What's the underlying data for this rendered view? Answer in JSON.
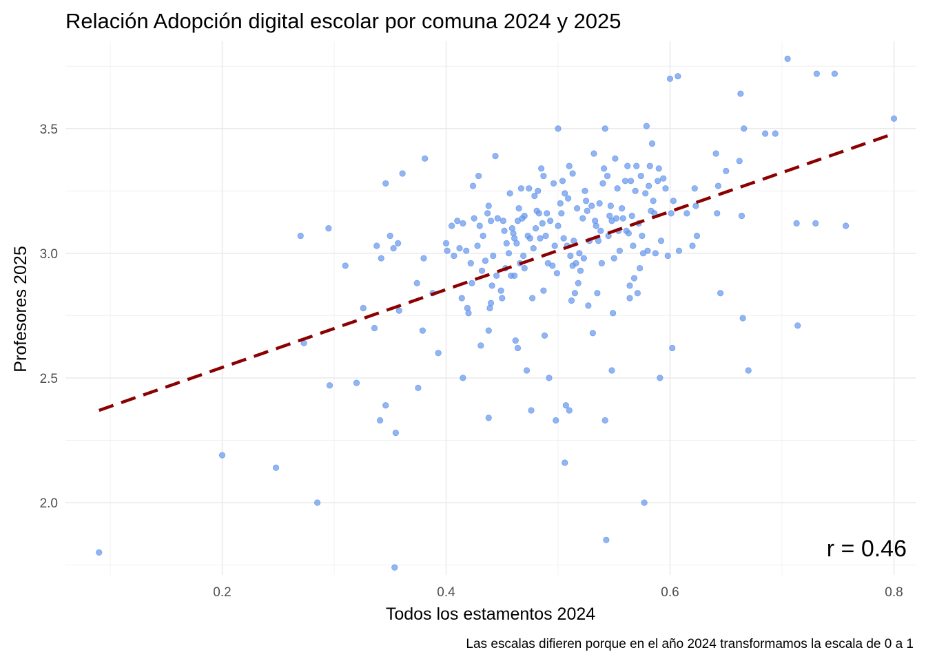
{
  "chart_data": {
    "type": "scatter",
    "title": "Relación Adopción digital escolar por comuna 2024 y 2025",
    "xlabel": "Todos los estamentos 2024",
    "ylabel": "Profesores 2025",
    "caption": "Las escalas difieren porque en el año 2024 transformamos la escala de 0 a 1",
    "annotation": "r = 0.46",
    "xlim": [
      0.06,
      0.82
    ],
    "ylim": [
      1.71,
      3.85
    ],
    "xticks": [
      "0.2",
      "0.4",
      "0.6",
      "0.8"
    ],
    "yticks": [
      "2.0",
      "2.5",
      "3.0",
      "3.5"
    ],
    "grid": true,
    "point_color": "#6495ED",
    "trend_color": "#8B0000",
    "trend_line": {
      "x": [
        0.09,
        0.8
      ],
      "y": [
        2.37,
        3.48
      ]
    },
    "points": [
      [
        0.09,
        1.8
      ],
      [
        0.2,
        2.19
      ],
      [
        0.248,
        2.14
      ],
      [
        0.285,
        2.0
      ],
      [
        0.27,
        3.07
      ],
      [
        0.295,
        3.1
      ],
      [
        0.273,
        2.64
      ],
      [
        0.296,
        2.47
      ],
      [
        0.31,
        2.95
      ],
      [
        0.32,
        2.48
      ],
      [
        0.326,
        2.78
      ],
      [
        0.336,
        2.7
      ],
      [
        0.338,
        3.03
      ],
      [
        0.341,
        2.33
      ],
      [
        0.342,
        2.98
      ],
      [
        0.346,
        2.39
      ],
      [
        0.346,
        3.28
      ],
      [
        0.35,
        3.07
      ],
      [
        0.353,
        3.02
      ],
      [
        0.354,
        1.74
      ],
      [
        0.355,
        2.28
      ],
      [
        0.357,
        3.04
      ],
      [
        0.358,
        2.77
      ],
      [
        0.361,
        3.32
      ],
      [
        0.374,
        2.88
      ],
      [
        0.375,
        2.46
      ],
      [
        0.379,
        2.69
      ],
      [
        0.381,
        3.38
      ],
      [
        0.38,
        2.98
      ],
      [
        0.388,
        2.84
      ],
      [
        0.393,
        2.6
      ],
      [
        0.4,
        3.04
      ],
      [
        0.401,
        3.01
      ],
      [
        0.405,
        3.11
      ],
      [
        0.407,
        2.99
      ],
      [
        0.41,
        3.13
      ],
      [
        0.412,
        3.02
      ],
      [
        0.414,
        2.82
      ],
      [
        0.415,
        3.12
      ],
      [
        0.415,
        2.5
      ],
      [
        0.418,
        3.01
      ],
      [
        0.419,
        2.78
      ],
      [
        0.42,
        2.76
      ],
      [
        0.422,
        2.96
      ],
      [
        0.423,
        2.88
      ],
      [
        0.424,
        3.27
      ],
      [
        0.425,
        3.14
      ],
      [
        0.428,
        3.03
      ],
      [
        0.429,
        3.31
      ],
      [
        0.43,
        3.11
      ],
      [
        0.431,
        2.63
      ],
      [
        0.432,
        2.93
      ],
      [
        0.433,
        3.07
      ],
      [
        0.435,
        2.97
      ],
      [
        0.437,
        3.16
      ],
      [
        0.438,
        2.34
      ],
      [
        0.438,
        2.69
      ],
      [
        0.438,
        3.19
      ],
      [
        0.439,
        2.78
      ],
      [
        0.44,
        3.13
      ],
      [
        0.44,
        2.8
      ],
      [
        0.441,
        2.87
      ],
      [
        0.442,
        2.99
      ],
      [
        0.444,
        3.39
      ],
      [
        0.445,
        2.91
      ],
      [
        0.446,
        3.14
      ],
      [
        0.449,
        2.85
      ],
      [
        0.45,
        2.82
      ],
      [
        0.451,
        3.13
      ],
      [
        0.452,
        3.09
      ],
      [
        0.453,
        2.94
      ],
      [
        0.454,
        3.04
      ],
      [
        0.456,
        3.0
      ],
      [
        0.457,
        3.24
      ],
      [
        0.458,
        2.91
      ],
      [
        0.459,
        3.1
      ],
      [
        0.46,
        3.08
      ],
      [
        0.461,
        2.91
      ],
      [
        0.461,
        3.06
      ],
      [
        0.462,
        2.65
      ],
      [
        0.463,
        3.04
      ],
      [
        0.464,
        2.62
      ],
      [
        0.464,
        3.13
      ],
      [
        0.465,
        3.18
      ],
      [
        0.466,
        2.96
      ],
      [
        0.467,
        3.26
      ],
      [
        0.468,
        3.14
      ],
      [
        0.469,
        2.99
      ],
      [
        0.47,
        3.15
      ],
      [
        0.47,
        2.94
      ],
      [
        0.472,
        2.53
      ],
      [
        0.473,
        3.07
      ],
      [
        0.474,
        3.26
      ],
      [
        0.475,
        3.06
      ],
      [
        0.476,
        2.37
      ],
      [
        0.477,
        2.82
      ],
      [
        0.478,
        3.02
      ],
      [
        0.479,
        3.23
      ],
      [
        0.48,
        3.1
      ],
      [
        0.481,
        3.17
      ],
      [
        0.482,
        3.25
      ],
      [
        0.483,
        3.16
      ],
      [
        0.484,
        3.06
      ],
      [
        0.485,
        3.34
      ],
      [
        0.486,
        3.12
      ],
      [
        0.487,
        2.85
      ],
      [
        0.487,
        3.31
      ],
      [
        0.488,
        2.67
      ],
      [
        0.489,
        3.07
      ],
      [
        0.49,
        3.16
      ],
      [
        0.491,
        2.96
      ],
      [
        0.492,
        2.5
      ],
      [
        0.493,
        3.13
      ],
      [
        0.495,
        2.95
      ],
      [
        0.496,
        3.28
      ],
      [
        0.497,
        3.03
      ],
      [
        0.498,
        2.33
      ],
      [
        0.499,
        2.92
      ],
      [
        0.5,
        3.5
      ],
      [
        0.5,
        3.11
      ],
      [
        0.502,
        3.2
      ],
      [
        0.503,
        3.16
      ],
      [
        0.504,
        3.29
      ],
      [
        0.505,
        3.06
      ],
      [
        0.506,
        3.24
      ],
      [
        0.506,
        2.16
      ],
      [
        0.507,
        2.39
      ],
      [
        0.508,
        3.03
      ],
      [
        0.509,
        3.22
      ],
      [
        0.51,
        2.37
      ],
      [
        0.51,
        3.35
      ],
      [
        0.511,
        2.99
      ],
      [
        0.512,
        2.81
      ],
      [
        0.513,
        3.32
      ],
      [
        0.513,
        2.95
      ],
      [
        0.514,
        3.05
      ],
      [
        0.515,
        2.84
      ],
      [
        0.516,
        2.96
      ],
      [
        0.517,
        3.18
      ],
      [
        0.518,
        2.88
      ],
      [
        0.519,
        3.0
      ],
      [
        0.52,
        2.93
      ],
      [
        0.522,
        3.14
      ],
      [
        0.523,
        2.98
      ],
      [
        0.524,
        3.25
      ],
      [
        0.525,
        3.21
      ],
      [
        0.526,
        3.17
      ],
      [
        0.527,
        2.79
      ],
      [
        0.528,
        3.05
      ],
      [
        0.53,
        3.19
      ],
      [
        0.531,
        2.68
      ],
      [
        0.532,
        3.4
      ],
      [
        0.533,
        3.13
      ],
      [
        0.534,
        3.11
      ],
      [
        0.535,
        2.84
      ],
      [
        0.536,
        3.05
      ],
      [
        0.537,
        3.2
      ],
      [
        0.538,
        3.09
      ],
      [
        0.539,
        2.96
      ],
      [
        0.54,
        3.28
      ],
      [
        0.541,
        3.34
      ],
      [
        0.542,
        3.5
      ],
      [
        0.542,
        2.33
      ],
      [
        0.543,
        1.85
      ],
      [
        0.544,
        3.31
      ],
      [
        0.545,
        3.07
      ],
      [
        0.546,
        3.15
      ],
      [
        0.547,
        3.19
      ],
      [
        0.548,
        2.53
      ],
      [
        0.548,
        3.13
      ],
      [
        0.549,
        2.76
      ],
      [
        0.55,
        2.98
      ],
      [
        0.551,
        3.38
      ],
      [
        0.552,
        3.14
      ],
      [
        0.553,
        3.26
      ],
      [
        0.554,
        3.09
      ],
      [
        0.555,
        3.01
      ],
      [
        0.557,
        3.18
      ],
      [
        0.558,
        3.14
      ],
      [
        0.56,
        3.29
      ],
      [
        0.561,
        3.09
      ],
      [
        0.562,
        3.35
      ],
      [
        0.563,
        3.08
      ],
      [
        0.564,
        2.87
      ],
      [
        0.564,
        2.82
      ],
      [
        0.565,
        3.29
      ],
      [
        0.566,
        3.15
      ],
      [
        0.567,
        3.03
      ],
      [
        0.568,
        2.9
      ],
      [
        0.569,
        3.25
      ],
      [
        0.57,
        3.35
      ],
      [
        0.571,
        2.84
      ],
      [
        0.572,
        3.12
      ],
      [
        0.573,
        2.94
      ],
      [
        0.574,
        3.31
      ],
      [
        0.575,
        3.07
      ],
      [
        0.576,
        3.0
      ],
      [
        0.577,
        2.0
      ],
      [
        0.578,
        3.24
      ],
      [
        0.579,
        3.51
      ],
      [
        0.58,
        3.01
      ],
      [
        0.581,
        3.27
      ],
      [
        0.582,
        3.35
      ],
      [
        0.583,
        3.17
      ],
      [
        0.584,
        3.44
      ],
      [
        0.585,
        3.21
      ],
      [
        0.586,
        3.16
      ],
      [
        0.587,
        3.0
      ],
      [
        0.589,
        3.29
      ],
      [
        0.59,
        3.34
      ],
      [
        0.591,
        2.5
      ],
      [
        0.592,
        3.05
      ],
      [
        0.594,
        3.3
      ],
      [
        0.596,
        3.26
      ],
      [
        0.598,
        2.99
      ],
      [
        0.6,
        3.7
      ],
      [
        0.601,
        3.16
      ],
      [
        0.602,
        2.62
      ],
      [
        0.603,
        3.21
      ],
      [
        0.607,
        3.71
      ],
      [
        0.608,
        3.01
      ],
      [
        0.615,
        3.16
      ],
      [
        0.62,
        3.03
      ],
      [
        0.622,
        3.26
      ],
      [
        0.623,
        3.19
      ],
      [
        0.624,
        3.07
      ],
      [
        0.641,
        3.4
      ],
      [
        0.642,
        3.16
      ],
      [
        0.643,
        3.27
      ],
      [
        0.645,
        2.84
      ],
      [
        0.65,
        3.33
      ],
      [
        0.662,
        3.37
      ],
      [
        0.663,
        3.64
      ],
      [
        0.664,
        3.15
      ],
      [
        0.665,
        2.74
      ],
      [
        0.666,
        3.5
      ],
      [
        0.67,
        2.53
      ],
      [
        0.685,
        3.48
      ],
      [
        0.694,
        3.48
      ],
      [
        0.705,
        3.78
      ],
      [
        0.713,
        3.12
      ],
      [
        0.714,
        2.71
      ],
      [
        0.73,
        3.12
      ],
      [
        0.731,
        3.72
      ],
      [
        0.747,
        3.72
      ],
      [
        0.757,
        3.11
      ],
      [
        0.8,
        3.54
      ]
    ]
  }
}
